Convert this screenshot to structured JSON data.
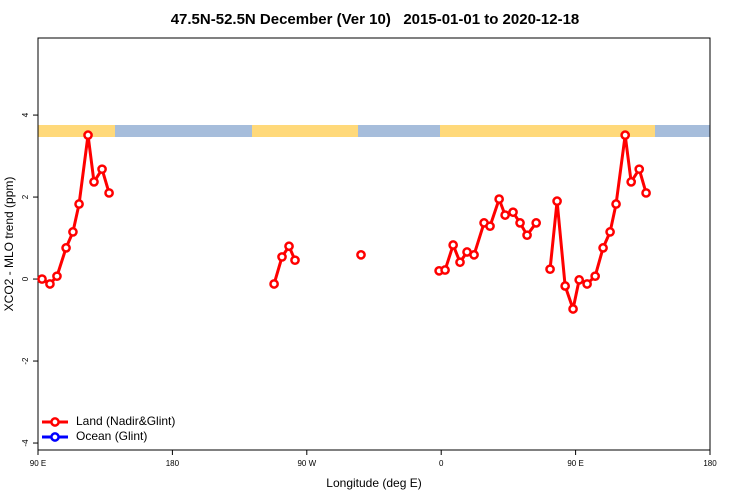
{
  "chart_data": {
    "type": "line",
    "title": "47.5N-52.5N December (Ver 10)   2015-01-01 to 2020-12-18",
    "x_label": "Longitude (deg E)",
    "y_label": "XCO2 - MLO trend (ppm)",
    "xlim": [
      90,
      540
    ],
    "xticks": [
      {
        "value": 90,
        "label": "90 E"
      },
      180,
      {
        "value": 270,
        "label": "90 W"
      },
      {
        "value": 360,
        "label": "0"
      },
      {
        "value": 450,
        "label": "90 E"
      },
      {
        "value": 540,
        "label": "180"
      }
    ],
    "ylim": [
      -4.17,
      5.88
    ],
    "yticks": [
      -4,
      -2,
      0,
      2,
      4
    ],
    "legend": "bottom-left",
    "series": [
      {
        "name": "Land (Nadir&Glint)",
        "color": "#ff0000",
        "x": [
          92.7,
          98.0,
          102.7,
          108.8,
          113.4,
          117.5,
          123.5,
          127.5,
          132.9,
          137.6,
          null,
          248.1,
          253.4,
          258.1,
          262.1,
          null,
          306.3,
          null,
          358.6,
          362.6,
          368.0,
          372.6,
          377.3,
          382.0,
          388.7,
          392.7,
          398.8,
          402.8,
          408.1,
          412.8,
          417.5,
          423.6,
          null,
          432.9,
          437.6,
          443.0,
          448.3,
          452.4,
          457.7,
          463.1,
          468.4,
          473.1,
          477.1,
          483.2,
          487.2,
          492.6,
          497.2
        ],
        "values": [
          0,
          -0.12,
          0.07,
          0.76,
          1.15,
          1.83,
          3.51,
          2.37,
          2.68,
          2.1,
          null,
          -0.12,
          0.54,
          0.8,
          0.46,
          null,
          0.59,
          null,
          0.2,
          0.22,
          0.83,
          0.41,
          0.66,
          0.59,
          1.37,
          1.29,
          1.95,
          1.56,
          1.63,
          1.37,
          1.07,
          1.37,
          null,
          0.24,
          1.9,
          -0.17,
          -0.73,
          -0.02,
          -0.12,
          0.07,
          0.76,
          1.15,
          1.83,
          3.51,
          2.37,
          2.68,
          2.1
        ]
      },
      {
        "name": "Ocean (Glint)",
        "color": "#0000ff",
        "x": [],
        "values": []
      }
    ]
  }
}
